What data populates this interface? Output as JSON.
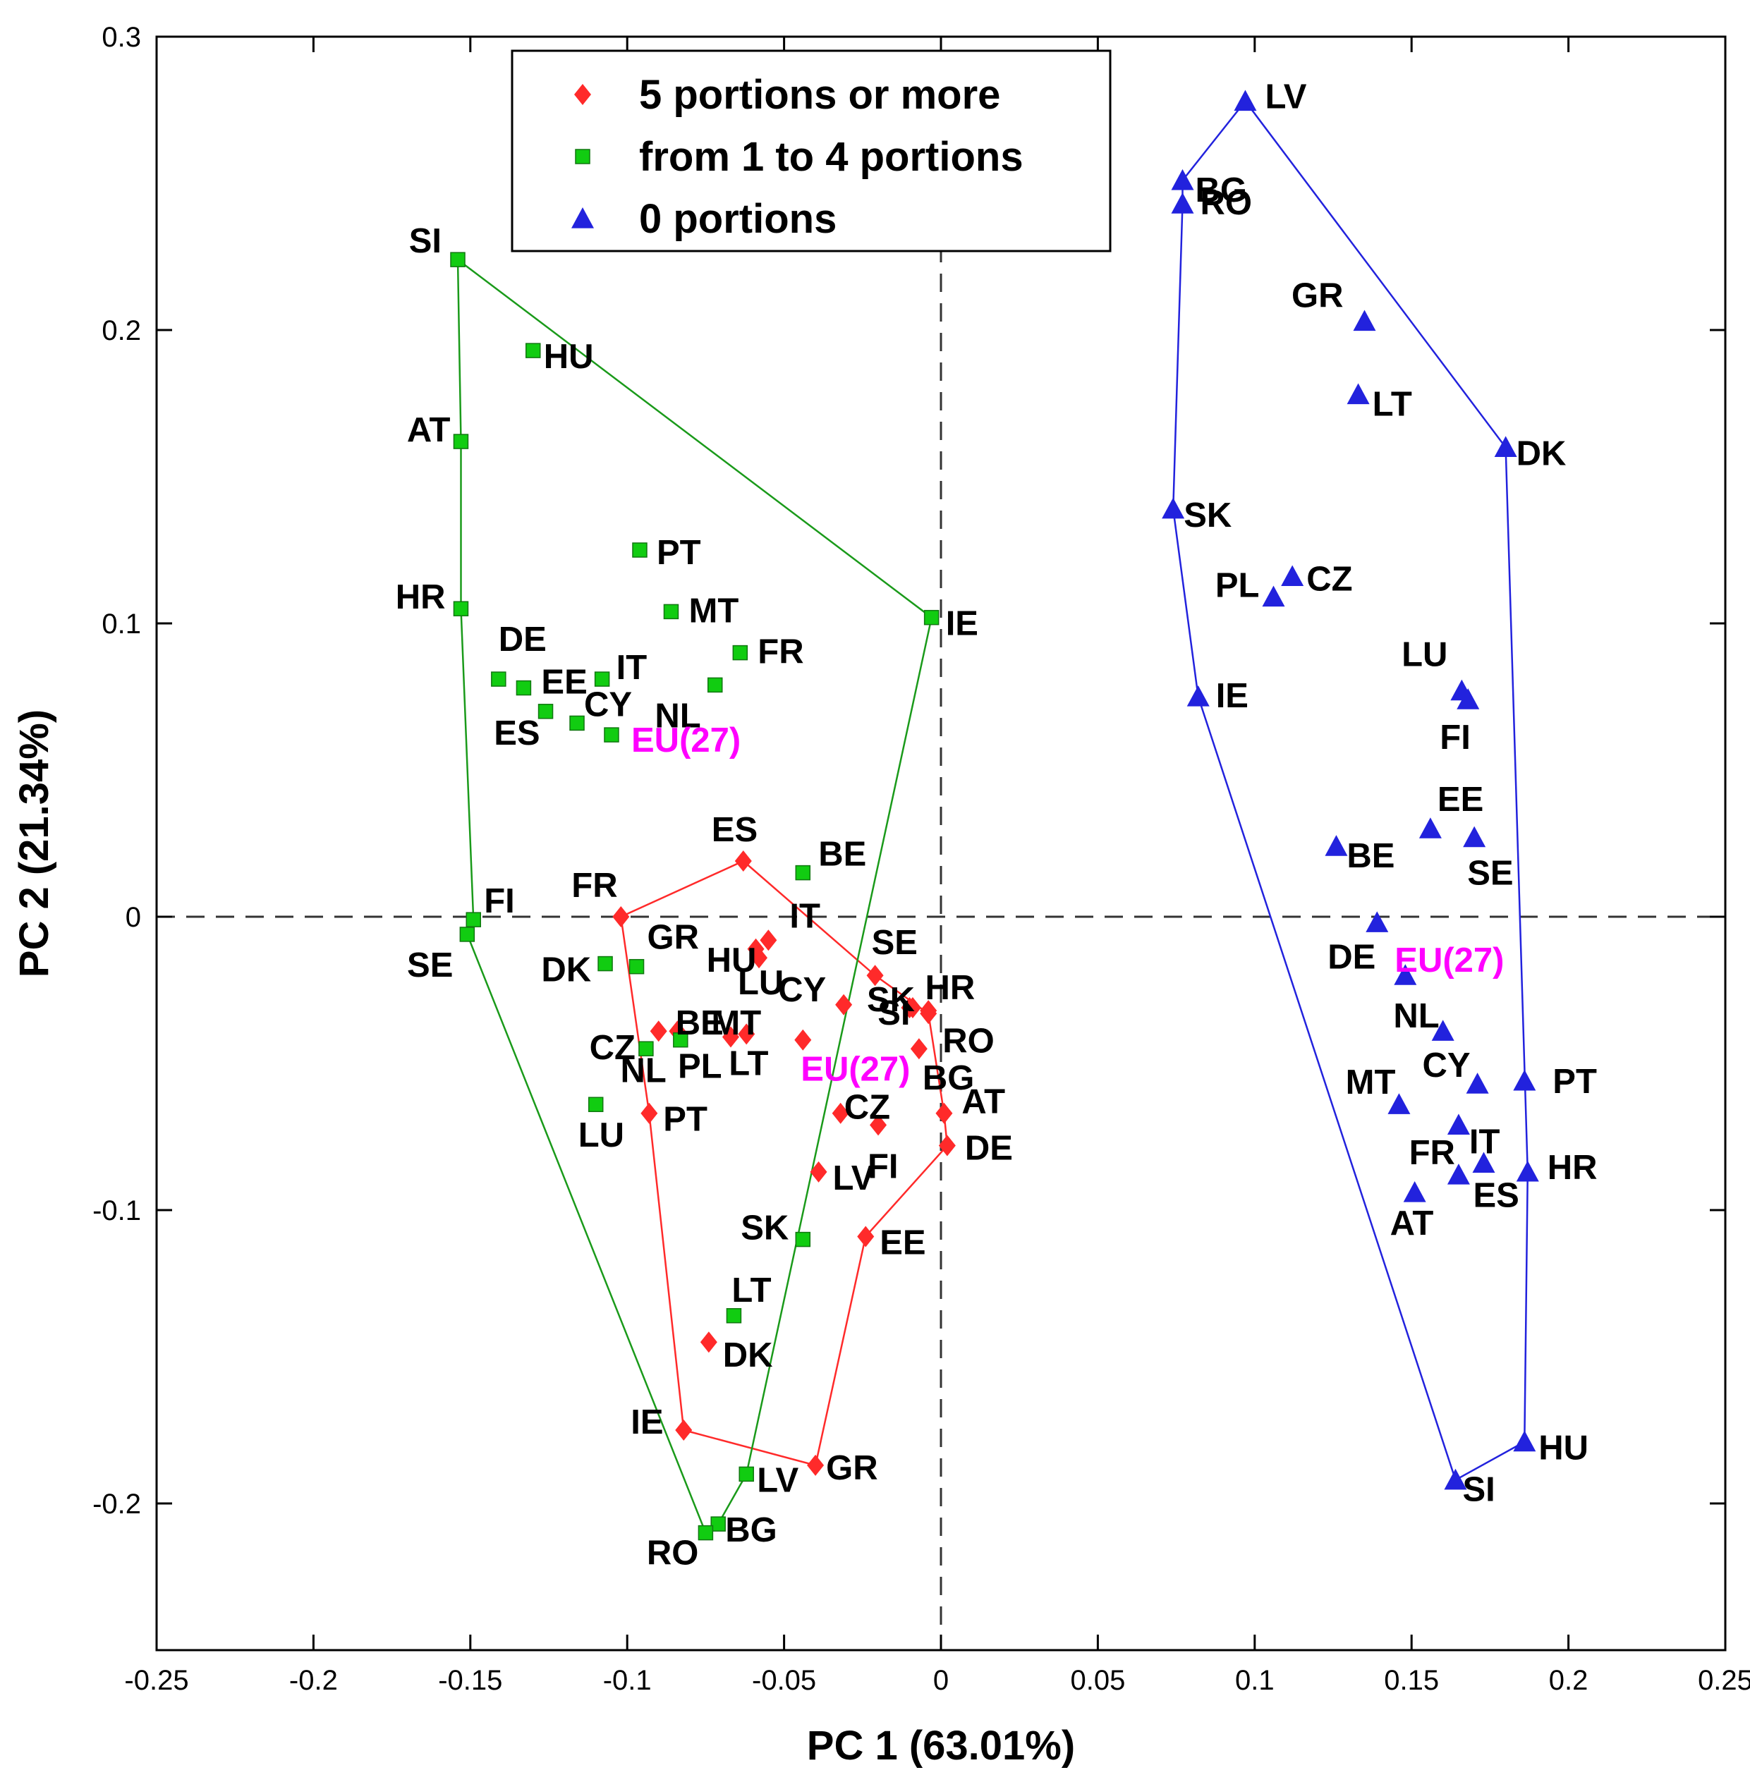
{
  "chart_data": {
    "type": "scatter",
    "title": "",
    "xlabel": "PC 1 (63.01%)",
    "ylabel": "PC 2 (21.34%)",
    "xlim": [
      -0.25,
      0.25
    ],
    "ylim": [
      -0.25,
      0.3
    ],
    "xticks": [
      -0.25,
      -0.2,
      -0.15,
      -0.1,
      -0.05,
      0,
      0.05,
      0.1,
      0.15,
      0.2,
      0.25
    ],
    "yticks": [
      -0.2,
      -0.1,
      0,
      0.1,
      0.2,
      0.3
    ],
    "xtick_labels": [
      "-0.25",
      "-0.2",
      "-0.15",
      "-0.1",
      "-0.05",
      "0",
      "0.05",
      "0.1",
      "0.15",
      "0.2",
      "0.25"
    ],
    "ytick_labels": [
      "-0.2",
      "-0.1",
      "0",
      "0.1",
      "0.2",
      "0.3"
    ],
    "reference_lines": {
      "x": 0,
      "y": 0,
      "style": "dashed"
    },
    "legend_position": "top-center",
    "series": [
      {
        "name": "5 portions or more",
        "marker": "diamond",
        "color": "#ff2a2a",
        "hull": [
          "ES",
          "SE",
          "RO",
          "AT",
          "DE",
          "EE",
          "GR",
          "IE",
          "PT",
          "FR"
        ],
        "points": [
          {
            "label": "ES",
            "x": -0.063,
            "y": 0.019
          },
          {
            "label": "FR",
            "x": -0.102,
            "y": 0.0
          },
          {
            "label": "HU",
            "x": -0.059,
            "y": -0.011
          },
          {
            "label": "IT",
            "x": -0.055,
            "y": -0.008
          },
          {
            "label": "LU",
            "x": -0.058,
            "y": -0.014
          },
          {
            "label": "SE",
            "x": -0.021,
            "y": -0.02
          },
          {
            "label": "HR",
            "x": -0.01,
            "y": -0.031
          },
          {
            "label": "CY",
            "x": -0.031,
            "y": -0.03
          },
          {
            "label": "SK",
            "x": -0.009,
            "y": -0.031
          },
          {
            "label": "SI",
            "x": -0.004,
            "y": -0.032
          },
          {
            "label": "RO",
            "x": -0.004,
            "y": -0.033
          },
          {
            "label": "BE",
            "x": -0.09,
            "y": -0.039
          },
          {
            "label": "MT",
            "x": -0.084,
            "y": -0.039
          },
          {
            "label": "PL",
            "x": -0.067,
            "y": -0.041
          },
          {
            "label": "LT",
            "x": -0.062,
            "y": -0.04
          },
          {
            "label": "EU(27)",
            "x": -0.044,
            "y": -0.042
          },
          {
            "label": "BG",
            "x": -0.007,
            "y": -0.045
          },
          {
            "label": "PT",
            "x": -0.093,
            "y": -0.067
          },
          {
            "label": "CZ",
            "x": -0.032,
            "y": -0.067
          },
          {
            "label": "FI",
            "x": -0.02,
            "y": -0.071
          },
          {
            "label": "AT",
            "x": 0.001,
            "y": -0.067
          },
          {
            "label": "DE",
            "x": 0.002,
            "y": -0.078
          },
          {
            "label": "LV",
            "x": -0.039,
            "y": -0.087
          },
          {
            "label": "EE",
            "x": -0.024,
            "y": -0.109
          },
          {
            "label": "DK",
            "x": -0.074,
            "y": -0.145
          },
          {
            "label": "IE",
            "x": -0.082,
            "y": -0.175
          },
          {
            "label": "GR",
            "x": -0.04,
            "y": -0.187
          }
        ]
      },
      {
        "name": "from 1 to 4 portions",
        "marker": "square",
        "color": "#11cc11",
        "hull": [
          "SI",
          "IE",
          "LV",
          "BG",
          "RO",
          "SE",
          "FI",
          "HR",
          "AT"
        ],
        "points": [
          {
            "label": "SI",
            "x": -0.154,
            "y": 0.224
          },
          {
            "label": "HU",
            "x": -0.13,
            "y": 0.193
          },
          {
            "label": "AT",
            "x": -0.153,
            "y": 0.162
          },
          {
            "label": "PT",
            "x": -0.096,
            "y": 0.125
          },
          {
            "label": "HR",
            "x": -0.153,
            "y": 0.105
          },
          {
            "label": "MT",
            "x": -0.086,
            "y": 0.104
          },
          {
            "label": "IE",
            "x": -0.003,
            "y": 0.102
          },
          {
            "label": "FR",
            "x": -0.064,
            "y": 0.09
          },
          {
            "label": "DE",
            "x": -0.141,
            "y": 0.081
          },
          {
            "label": "EE",
            "x": -0.133,
            "y": 0.078
          },
          {
            "label": "IT",
            "x": -0.108,
            "y": 0.081
          },
          {
            "label": "NL",
            "x": -0.072,
            "y": 0.079
          },
          {
            "label": "ES",
            "x": -0.126,
            "y": 0.07
          },
          {
            "label": "CY",
            "x": -0.116,
            "y": 0.066
          },
          {
            "label": "EU(27)",
            "x": -0.105,
            "y": 0.062
          },
          {
            "label": "BE",
            "x": -0.044,
            "y": 0.015
          },
          {
            "label": "FI",
            "x": -0.149,
            "y": -0.001
          },
          {
            "label": "SE",
            "x": -0.151,
            "y": -0.006
          },
          {
            "label": "DK",
            "x": -0.107,
            "y": -0.016
          },
          {
            "label": "GR",
            "x": -0.097,
            "y": -0.017
          },
          {
            "label": "NL",
            "x": -0.083,
            "y": -0.042
          },
          {
            "label": "CZ",
            "x": -0.094,
            "y": -0.045
          },
          {
            "label": "LU",
            "x": -0.11,
            "y": -0.064
          },
          {
            "label": "SK",
            "x": -0.044,
            "y": -0.11
          },
          {
            "label": "LT",
            "x": -0.066,
            "y": -0.136
          },
          {
            "label": "LV",
            "x": -0.062,
            "y": -0.19
          },
          {
            "label": "BG",
            "x": -0.071,
            "y": -0.207
          },
          {
            "label": "RO",
            "x": -0.075,
            "y": -0.21
          }
        ]
      },
      {
        "name": "0 portions",
        "marker": "triangle",
        "color": "#2222dd",
        "hull": [
          "LV",
          "DK",
          "HR",
          "HU",
          "SI",
          "IE",
          "SK",
          "RO",
          "BG"
        ],
        "points": [
          {
            "label": "LV",
            "x": 0.097,
            "y": 0.278
          },
          {
            "label": "BG",
            "x": 0.077,
            "y": 0.251
          },
          {
            "label": "RO",
            "x": 0.077,
            "y": 0.243
          },
          {
            "label": "GR",
            "x": 0.135,
            "y": 0.203
          },
          {
            "label": "LT",
            "x": 0.133,
            "y": 0.178
          },
          {
            "label": "DK",
            "x": 0.18,
            "y": 0.16
          },
          {
            "label": "SK",
            "x": 0.074,
            "y": 0.139
          },
          {
            "label": "CZ",
            "x": 0.112,
            "y": 0.116
          },
          {
            "label": "PL",
            "x": 0.106,
            "y": 0.109
          },
          {
            "label": "IE",
            "x": 0.082,
            "y": 0.075
          },
          {
            "label": "LU",
            "x": 0.166,
            "y": 0.077
          },
          {
            "label": "FI",
            "x": 0.168,
            "y": 0.074
          },
          {
            "label": "EE",
            "x": 0.156,
            "y": 0.03
          },
          {
            "label": "SE",
            "x": 0.17,
            "y": 0.027
          },
          {
            "label": "BE",
            "x": 0.126,
            "y": 0.024
          },
          {
            "label": "DE",
            "x": 0.139,
            "y": -0.002
          },
          {
            "label": "EU(27)",
            "x": 0.148,
            "y": -0.02
          },
          {
            "label": "NL",
            "x": 0.16,
            "y": -0.039
          },
          {
            "label": "PT",
            "x": 0.186,
            "y": -0.056
          },
          {
            "label": "CY",
            "x": 0.171,
            "y": -0.057
          },
          {
            "label": "MT",
            "x": 0.146,
            "y": -0.064
          },
          {
            "label": "IT",
            "x": 0.165,
            "y": -0.071
          },
          {
            "label": "HR",
            "x": 0.187,
            "y": -0.087
          },
          {
            "label": "ES",
            "x": 0.173,
            "y": -0.084
          },
          {
            "label": "FR",
            "x": 0.165,
            "y": -0.088
          },
          {
            "label": "AT",
            "x": 0.151,
            "y": -0.094
          },
          {
            "label": "HU",
            "x": 0.186,
            "y": -0.179
          },
          {
            "label": "SI",
            "x": 0.164,
            "y": -0.192
          }
        ]
      }
    ]
  }
}
